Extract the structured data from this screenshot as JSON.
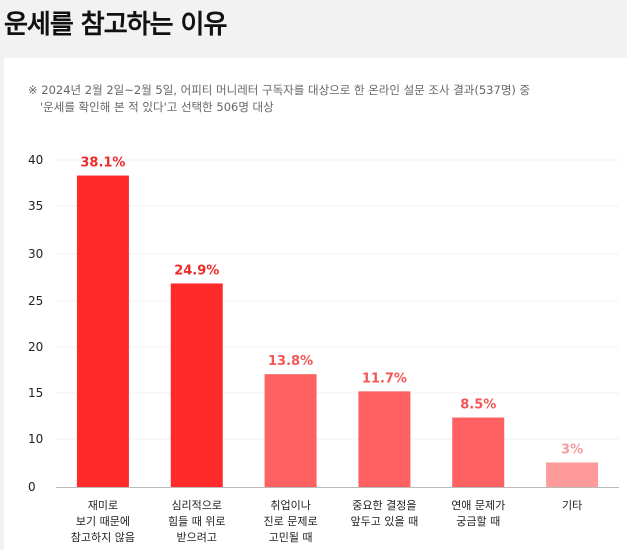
{
  "header": {
    "title": "운세를 참고하는 이유"
  },
  "note": {
    "line1": "※ 2024년 2월 2일~2월 5일, 어피티 머니레터 구독자를 대상으로 한 온라인 설문 조사 결과(537명) 중",
    "line2": "'운세를 확인해 본 적 있다'고 선택한 506명 대상"
  },
  "chart_data": {
    "type": "bar",
    "title": "",
    "xlabel": "",
    "ylabel": "",
    "ylim": [
      0,
      40
    ],
    "yticks": [
      "0",
      "10",
      "15",
      "20",
      "25",
      "30",
      "35",
      "40"
    ],
    "categories": [
      [
        "재미로",
        "보기 때문에",
        "참고하지 않음"
      ],
      [
        "심리적으로",
        "힘들 때 위로",
        "받으려고"
      ],
      [
        "취업이나",
        "진로 문제로",
        "고민될 때"
      ],
      [
        "중요한 결정을",
        "앞두고 있을 때"
      ],
      [
        "연애 문제가",
        "궁금할 때"
      ],
      [
        "기타"
      ]
    ],
    "values": [
      38.1,
      24.9,
      13.8,
      11.7,
      8.5,
      3
    ],
    "value_labels": [
      "38.1%",
      "24.9%",
      "13.8%",
      "11.7%",
      "8.5%",
      "3%"
    ],
    "colors": [
      "#ff2a2a",
      "#ff2a2a",
      "#fe6161",
      "#fe6161",
      "#fe6161",
      "#fe9a9a"
    ],
    "label_colors": [
      "#ee2a2a",
      "#ee2a2a",
      "#f25656",
      "#f25656",
      "#f25656",
      "#f59a9a"
    ],
    "grid": true,
    "legend": "none"
  }
}
